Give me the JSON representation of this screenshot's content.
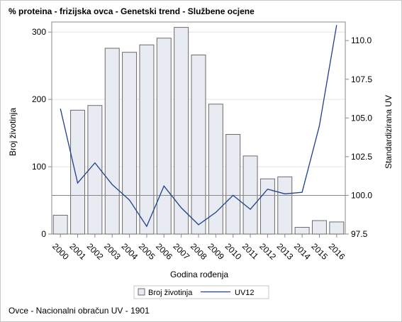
{
  "header": {
    "title": "% proteina - frizijska ovca - Genetski trend - Službene ocjene"
  },
  "footer": {
    "note": "Ovce - Nacionalni obračun UV - 1901"
  },
  "chart_data": {
    "type": "bar",
    "title": "% proteina - frizijska ovca - Genetski trend - Službene ocjene",
    "xlabel": "Godina rođenja",
    "ylabel": "Broj životinja",
    "y2label": "Standardizirana UV",
    "categories": [
      "2000",
      "2001",
      "2002",
      "2003",
      "2004",
      "2005",
      "2006",
      "2007",
      "2008",
      "2009",
      "2010",
      "2011",
      "2012",
      "2013",
      "2014",
      "2015",
      "2016"
    ],
    "ylim": [
      0,
      315
    ],
    "yticks": [
      0,
      100,
      200,
      300
    ],
    "y2lim": [
      97.5,
      111.2
    ],
    "y2ticks": [
      "97.5",
      "100.0",
      "102.5",
      "105.0",
      "107.5",
      "110.0"
    ],
    "reference_line_y2": 100,
    "grid": true,
    "legend_position": "bottom",
    "colors": {
      "bar_fill": "#e8ebf2",
      "bar_stroke": "#6b6b6b",
      "line": "#1f3f8f",
      "grid": "#e4e4e4",
      "axis": "#888888",
      "refline": "#888888"
    },
    "series": [
      {
        "name": "Broj životinja",
        "type": "bar",
        "axis": "left",
        "values": [
          28,
          184,
          191,
          276,
          270,
          281,
          291,
          307,
          266,
          193,
          148,
          116,
          82,
          85,
          10,
          20,
          18
        ]
      },
      {
        "name": "UV12",
        "type": "line",
        "axis": "right",
        "values": [
          105.6,
          100.8,
          102.1,
          100.7,
          99.7,
          98.0,
          100.6,
          99.2,
          98.1,
          98.9,
          100.0,
          99.1,
          100.4,
          100.1,
          100.2,
          104.5,
          111.0
        ]
      }
    ]
  }
}
